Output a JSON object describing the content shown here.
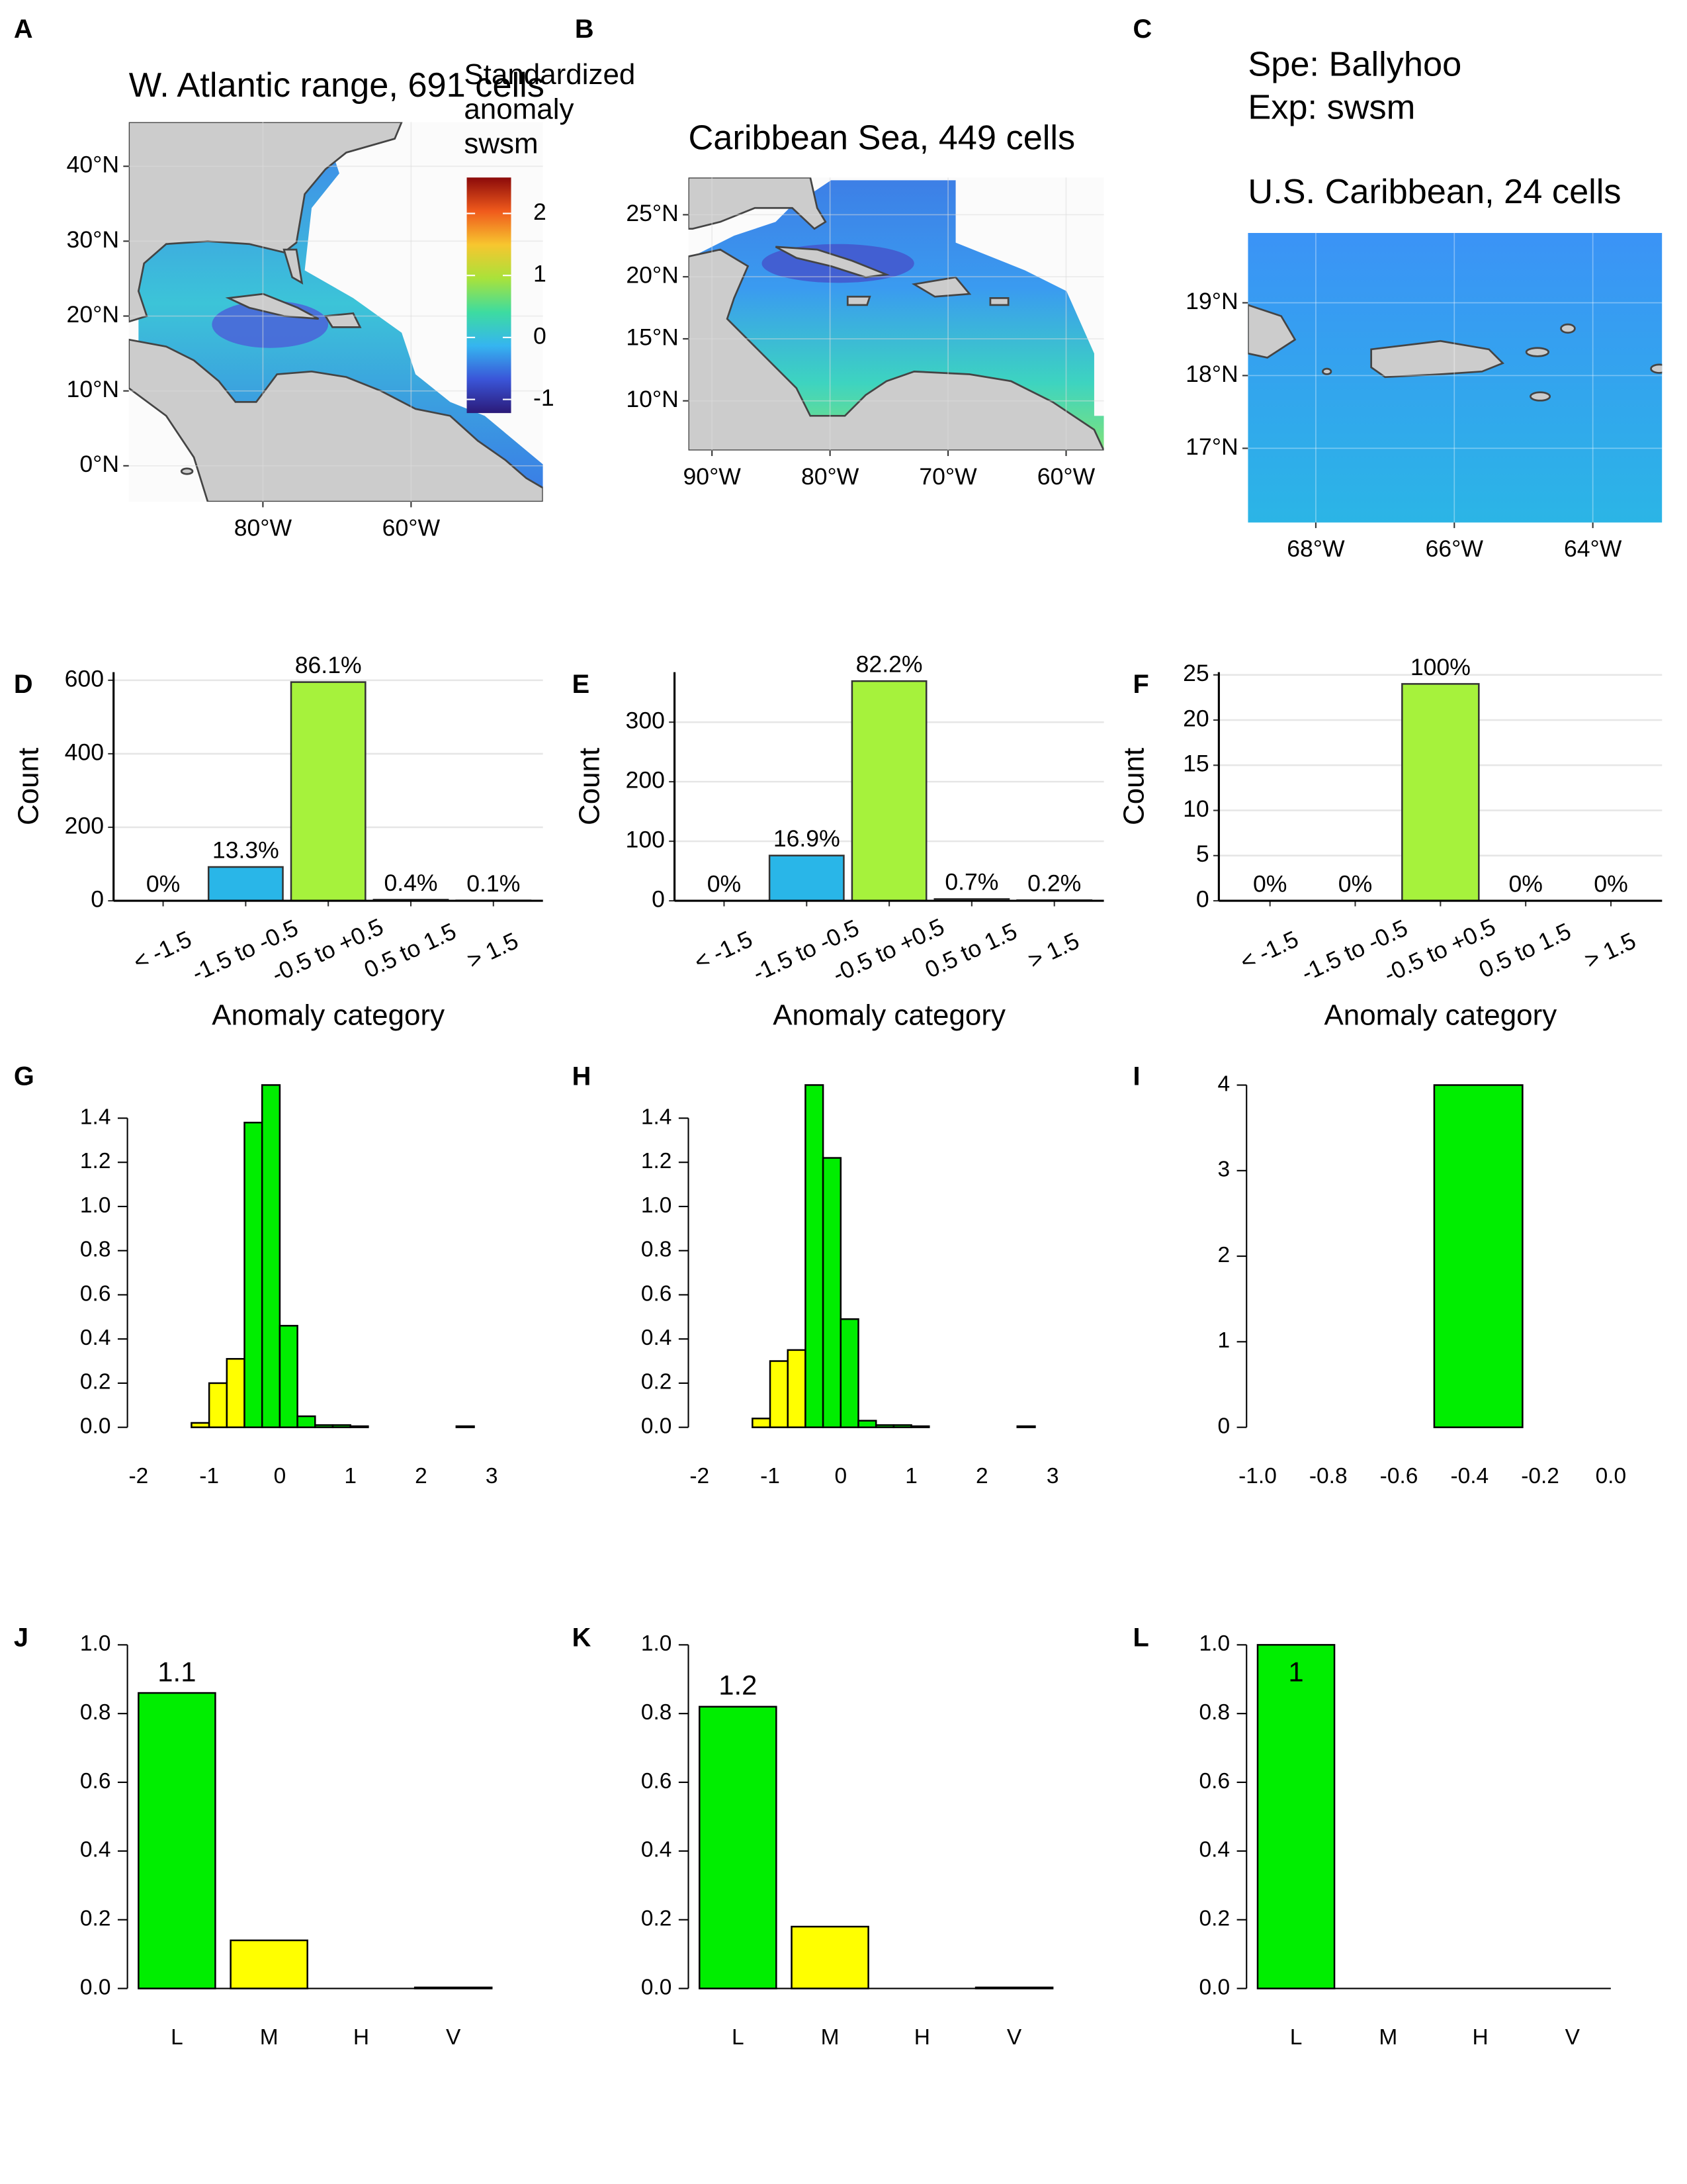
{
  "chart_data": [
    {
      "type": "map",
      "panel": "A",
      "title": "W. Atlantic range, 691 cells",
      "xlim": [
        -98.1,
        -42.2
      ],
      "ylim": [
        -4.8,
        45.9
      ],
      "xticks": [
        {
          "value": -80,
          "label": "80°W"
        },
        {
          "value": -60,
          "label": "60°W"
        }
      ],
      "yticks": [
        {
          "value": 0,
          "label": "0°N"
        },
        {
          "value": 10,
          "label": "10°N"
        },
        {
          "value": 20,
          "label": "20°N"
        },
        {
          "value": 30,
          "label": "30°N"
        },
        {
          "value": 40,
          "label": "40°N"
        }
      ],
      "legend_title": [
        "Standardized",
        "anomaly",
        "swsm"
      ],
      "legend_lim": [
        -1.22,
        2.58
      ],
      "legend_ticks": [
        -1,
        0,
        1,
        2
      ],
      "legend_colors": [
        "#2b1a78",
        "#3a55d8",
        "#35b5f0",
        "#3ddca0",
        "#a9e23a",
        "#f7c62f",
        "#f05a1c",
        "#8b0a0a"
      ]
    },
    {
      "type": "map",
      "panel": "B",
      "title": "Caribbean Sea, 449 cells",
      "xlim": [
        -92.0,
        -56.8
      ],
      "ylim": [
        6.0,
        28.0
      ],
      "xticks": [
        {
          "value": -90,
          "label": "90°W"
        },
        {
          "value": -80,
          "label": "80°W"
        },
        {
          "value": -70,
          "label": "70°W"
        },
        {
          "value": -60,
          "label": "60°W"
        }
      ],
      "yticks": [
        {
          "value": 10,
          "label": "10°N"
        },
        {
          "value": 15,
          "label": "15°N"
        },
        {
          "value": 20,
          "label": "20°N"
        },
        {
          "value": 25,
          "label": "25°N"
        }
      ]
    },
    {
      "type": "map",
      "panel": "C",
      "subtitle": [
        "Spe: Ballyhoo",
        "Exp: swsm"
      ],
      "title": "U.S. Caribbean, 24 cells",
      "xlim": [
        -68.98,
        -63.0
      ],
      "ylim": [
        15.98,
        19.96
      ],
      "xticks": [
        {
          "value": -68,
          "label": "68°W"
        },
        {
          "value": -66,
          "label": "66°W"
        },
        {
          "value": -64,
          "label": "64°W"
        }
      ],
      "yticks": [
        {
          "value": 17,
          "label": "17°N"
        },
        {
          "value": 18,
          "label": "18°N"
        },
        {
          "value": 19,
          "label": "19°N"
        }
      ]
    },
    {
      "type": "bar",
      "panel": "D",
      "grid": true,
      "categories": [
        "< -1.5",
        "-1.5 to -0.5",
        "-0.5 to +0.5",
        "0.5 to 1.5",
        "> 1.5"
      ],
      "values": [
        0,
        92,
        595,
        3,
        1
      ],
      "percent_labels": [
        "0%",
        "13.3%",
        "86.1%",
        "0.4%",
        "0.1%"
      ],
      "colors": [
        "#3a55d8",
        "#29b6e8",
        "#a6f23c",
        "#f7c62f",
        "#f05a1c"
      ],
      "xlabel": "Anomaly category",
      "ylabel": "Count",
      "ylim": [
        0,
        622
      ],
      "yticks": [
        0,
        200,
        400,
        600
      ]
    },
    {
      "type": "bar",
      "panel": "E",
      "grid": true,
      "categories": [
        "< -1.5",
        "-1.5 to -0.5",
        "-0.5 to +0.5",
        "0.5 to 1.5",
        "> 1.5"
      ],
      "values": [
        0,
        76,
        369,
        3,
        1
      ],
      "percent_labels": [
        "0%",
        "16.9%",
        "82.2%",
        "0.7%",
        "0.2%"
      ],
      "colors": [
        "#3a55d8",
        "#29b6e8",
        "#a6f23c",
        "#f7c62f",
        "#f05a1c"
      ],
      "xlabel": "Anomaly category",
      "ylabel": "Count",
      "ylim": [
        0,
        384
      ],
      "yticks": [
        0,
        100,
        200,
        300
      ]
    },
    {
      "type": "bar",
      "panel": "F",
      "grid": true,
      "categories": [
        "< -1.5",
        "-1.5 to -0.5",
        "-0.5 to +0.5",
        "0.5 to 1.5",
        "> 1.5"
      ],
      "values": [
        0,
        0,
        24,
        0,
        0
      ],
      "percent_labels": [
        "0%",
        "0%",
        "100%",
        "0%",
        "0%"
      ],
      "colors": [
        "#3a55d8",
        "#29b6e8",
        "#a6f23c",
        "#f7c62f",
        "#f05a1c"
      ],
      "xlabel": "Anomaly category",
      "ylabel": "Count",
      "ylim": [
        0,
        25.3
      ],
      "yticks": [
        0,
        5,
        10,
        15,
        20,
        25
      ]
    },
    {
      "type": "histogram",
      "panel": "G",
      "bins": [
        -1.25,
        -1,
        -0.75,
        -0.5,
        -0.25,
        0,
        0.25,
        0.5,
        0.75,
        1,
        1.25,
        1.5,
        1.75,
        2,
        2.25,
        2.5,
        2.75
      ],
      "values": [
        0.02,
        0.2,
        0.31,
        1.38,
        1.55,
        0.46,
        0.05,
        0.01,
        0.01,
        0.005,
        0,
        0,
        0,
        0,
        0,
        0.005
      ],
      "colors": [
        "#ffff00",
        "#ffff00",
        "#ffff00",
        "#00ee00",
        "#00ee00",
        "#00ee00",
        "#00ee00",
        "#00ee00",
        "#00ee00",
        "#00ee00",
        "#00ee00",
        "#00ee00",
        "#00ee00",
        "#00ee00",
        "#00ee00",
        "#00ee00"
      ],
      "xlim": [
        -2,
        3
      ],
      "xticks": [
        -2,
        -1,
        0,
        1,
        2,
        3
      ],
      "ylim": [
        0,
        1.6
      ],
      "yticks": [
        {
          "value": 0,
          "label": "0.0"
        },
        0.2,
        0.4,
        0.6,
        0.8,
        {
          "value": 1,
          "label": "1.0"
        },
        1.2,
        1.4
      ]
    },
    {
      "type": "histogram",
      "panel": "H",
      "bins": [
        -1.25,
        -1,
        -0.75,
        -0.5,
        -0.25,
        0,
        0.25,
        0.5,
        0.75,
        1,
        1.25,
        1.5,
        1.75,
        2,
        2.25,
        2.5,
        2.75
      ],
      "values": [
        0.04,
        0.3,
        0.35,
        1.55,
        1.22,
        0.49,
        0.03,
        0.01,
        0.01,
        0.005,
        0,
        0,
        0,
        0,
        0,
        0.005
      ],
      "colors": [
        "#ffff00",
        "#ffff00",
        "#ffff00",
        "#00ee00",
        "#00ee00",
        "#00ee00",
        "#00ee00",
        "#00ee00",
        "#00ee00",
        "#00ee00",
        "#00ee00",
        "#00ee00",
        "#00ee00",
        "#00ee00",
        "#00ee00",
        "#00ee00"
      ],
      "xlim": [
        -2,
        3
      ],
      "xticks": [
        -2,
        -1,
        0,
        1,
        2,
        3
      ],
      "ylim": [
        0,
        1.6
      ],
      "yticks": [
        {
          "value": 0,
          "label": "0.0"
        },
        0.2,
        0.4,
        0.6,
        0.8,
        {
          "value": 1,
          "label": "1.0"
        },
        1.2,
        1.4
      ]
    },
    {
      "type": "histogram",
      "panel": "I",
      "bins": [
        -0.5,
        -0.25
      ],
      "values": [
        4
      ],
      "colors": [
        "#00ee00"
      ],
      "xlim": [
        -1,
        0
      ],
      "xticks": [
        {
          "value": -1,
          "label": "-1.0"
        },
        -0.8,
        -0.6,
        -0.4,
        -0.2,
        {
          "value": 0,
          "label": "0.0"
        }
      ],
      "ylim": [
        0,
        4
      ],
      "yticks": [
        0,
        1,
        2,
        3,
        4
      ]
    },
    {
      "type": "bar",
      "panel": "J",
      "grid": false,
      "categories": [
        "L",
        "M",
        "H",
        "V"
      ],
      "values": [
        0.86,
        0.14,
        0,
        0.003
      ],
      "annotation": "1.1",
      "colors": [
        "#00ee00",
        "#ffff00",
        "#ff8c00",
        "#ff0000"
      ],
      "ylim": [
        0,
        1
      ],
      "yticks": [
        {
          "value": 0,
          "label": "0.0"
        },
        0.2,
        0.4,
        0.6,
        0.8,
        {
          "value": 1,
          "label": "1.0"
        }
      ]
    },
    {
      "type": "bar",
      "panel": "K",
      "grid": false,
      "categories": [
        "L",
        "M",
        "H",
        "V"
      ],
      "values": [
        0.82,
        0.18,
        0,
        0.003
      ],
      "annotation": "1.2",
      "colors": [
        "#00ee00",
        "#ffff00",
        "#ff8c00",
        "#ff0000"
      ],
      "ylim": [
        0,
        1
      ],
      "yticks": [
        {
          "value": 0,
          "label": "0.0"
        },
        0.2,
        0.4,
        0.6,
        0.8,
        {
          "value": 1,
          "label": "1.0"
        }
      ]
    },
    {
      "type": "bar",
      "panel": "L",
      "grid": false,
      "categories": [
        "L",
        "M",
        "H",
        "V"
      ],
      "values": [
        1,
        0,
        0,
        0
      ],
      "annotation": "1",
      "colors": [
        "#00ee00",
        "#ffff00",
        "#ff8c00",
        "#ff0000"
      ],
      "ylim": [
        0,
        1
      ],
      "yticks": [
        {
          "value": 0,
          "label": "0.0"
        },
        0.2,
        0.4,
        0.6,
        0.8,
        {
          "value": 1,
          "label": "1.0"
        }
      ]
    }
  ]
}
